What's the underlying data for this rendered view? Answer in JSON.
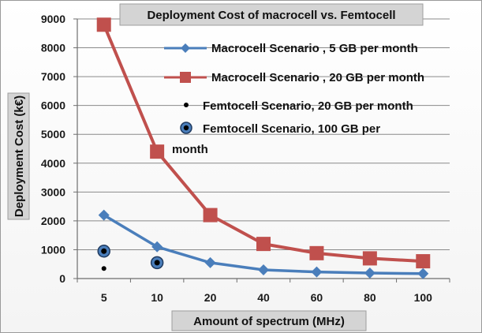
{
  "chart_data": {
    "type": "line",
    "title": "Deployment Cost of macrocell vs. Femtocell",
    "xlabel": "Amount of spectrum (MHz)",
    "ylabel": "Deployment Cost (k€)",
    "categories": [
      "5",
      "10",
      "20",
      "40",
      "60",
      "80",
      "100"
    ],
    "ylim": [
      0,
      9000
    ],
    "yticks": [
      0,
      1000,
      2000,
      3000,
      4000,
      5000,
      6000,
      7000,
      8000,
      9000
    ],
    "grid": true,
    "legend_position": "top-right",
    "series": [
      {
        "name": "Macrocell Scenario , 5 GB per month",
        "values": [
          2200,
          1100,
          550,
          300,
          230,
          190,
          170
        ],
        "color": "#4a7ebb",
        "marker": "diamond",
        "line": true
      },
      {
        "name": "Macrocell Scenario , 20 GB per month",
        "values": [
          8800,
          4400,
          2200,
          1200,
          880,
          700,
          600
        ],
        "color": "#c0504d",
        "marker": "square",
        "line": true
      },
      {
        "name": "Femtocell Scenario, 20 GB per month",
        "values": [
          350,
          null,
          null,
          null,
          null,
          null,
          null
        ],
        "color": "#000000",
        "marker": "dot",
        "line": false
      },
      {
        "name": "Femtocell Scenario, 100 GB per month",
        "values": [
          950,
          550,
          null,
          null,
          null,
          null,
          null
        ],
        "color": "#1f3a5f",
        "marker": "ringed-dot",
        "line": false
      }
    ]
  }
}
